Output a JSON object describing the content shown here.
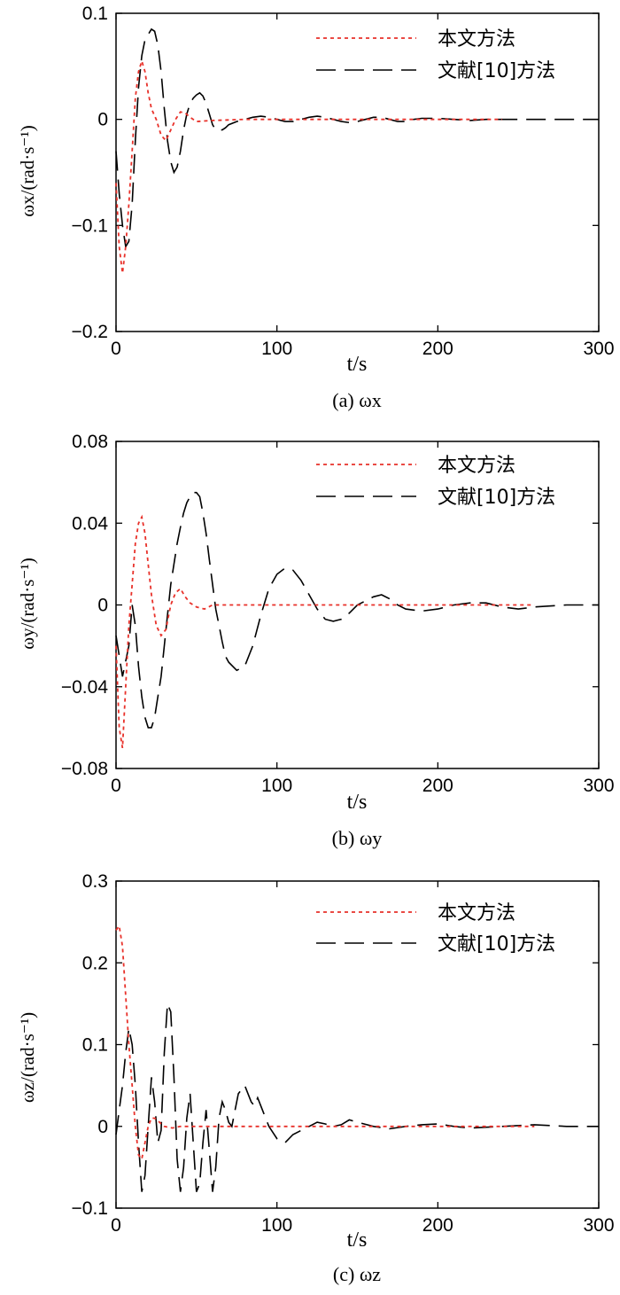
{
  "colors": {
    "proposed": "#e8312a",
    "reference": "#000000",
    "axis": "#000000"
  },
  "chart_data": [
    {
      "type": "line",
      "caption": "(a) ωx",
      "xlabel": "t/s",
      "ylabel": "ωx/(rad·s⁻¹)",
      "xlim": [
        0,
        300
      ],
      "ylim": [
        -0.2,
        0.1
      ],
      "xticks": [
        0,
        100,
        200,
        300
      ],
      "xtick_labels": [
        "0",
        "100",
        "200",
        "300"
      ],
      "yticks": [
        -0.2,
        -0.1,
        0,
        0.1
      ],
      "ytick_labels": [
        "−0.2",
        "−0.1",
        "0",
        "0.1"
      ],
      "legend_position": "top-right",
      "grid": false,
      "series": [
        {
          "name": "本文方法",
          "style": "dotted-red",
          "x": [
            0,
            2,
            4,
            6,
            8,
            10,
            12,
            14,
            16,
            18,
            20,
            22,
            25,
            28,
            31,
            34,
            37,
            40,
            43,
            46,
            50,
            60,
            80,
            100,
            120,
            150,
            200,
            240
          ],
          "y": [
            -0.06,
            -0.12,
            -0.145,
            -0.12,
            -0.08,
            -0.03,
            0.02,
            0.045,
            0.055,
            0.045,
            0.025,
            0.01,
            0.0,
            -0.015,
            -0.02,
            -0.01,
            0.0,
            0.007,
            0.006,
            0.002,
            -0.002,
            -0.001,
            0.0,
            0.0,
            0.0,
            0.0,
            0.0,
            0.0
          ]
        },
        {
          "name": "文献[10]方法",
          "style": "dashed-black",
          "x": [
            0,
            2,
            4,
            6,
            8,
            10,
            12,
            14,
            16,
            18,
            20,
            22,
            24,
            26,
            28,
            30,
            32,
            34,
            36,
            38,
            40,
            42,
            44,
            46,
            48,
            50,
            52,
            54,
            56,
            58,
            60,
            62,
            64,
            66,
            68,
            70,
            75,
            80,
            85,
            90,
            95,
            100,
            105,
            110,
            115,
            120,
            125,
            130,
            135,
            140,
            145,
            150,
            155,
            160,
            165,
            170,
            175,
            180,
            185,
            190,
            200,
            210,
            220,
            230,
            240,
            260,
            280,
            300
          ],
          "y": [
            -0.03,
            -0.07,
            -0.1,
            -0.12,
            -0.115,
            -0.08,
            -0.02,
            0.03,
            0.06,
            0.075,
            0.08,
            0.085,
            0.083,
            0.07,
            0.045,
            0.01,
            -0.02,
            -0.04,
            -0.05,
            -0.045,
            -0.03,
            -0.01,
            0.005,
            0.015,
            0.02,
            0.023,
            0.025,
            0.022,
            0.015,
            0.005,
            -0.005,
            -0.01,
            -0.01,
            -0.01,
            -0.008,
            -0.005,
            -0.002,
            0.0,
            0.002,
            0.003,
            0.002,
            0.0,
            -0.002,
            -0.002,
            0.0,
            0.002,
            0.003,
            0.002,
            0.0,
            -0.002,
            -0.003,
            -0.002,
            0.0,
            0.002,
            0.002,
            0.0,
            -0.002,
            -0.002,
            0.0,
            0.001,
            0.001,
            0.0,
            -0.001,
            0.0,
            0.0,
            0.0,
            0.0,
            0.0
          ]
        }
      ]
    },
    {
      "type": "line",
      "caption": "(b) ωy",
      "xlabel": "t/s",
      "ylabel": "ωy/(rad·s⁻¹)",
      "xlim": [
        0,
        300
      ],
      "ylim": [
        -0.08,
        0.08
      ],
      "xticks": [
        0,
        100,
        200,
        300
      ],
      "xtick_labels": [
        "0",
        "100",
        "200",
        "300"
      ],
      "yticks": [
        -0.08,
        -0.04,
        0,
        0.04,
        0.08
      ],
      "ytick_labels": [
        "−0.08",
        "−0.04",
        "0",
        "0.04",
        "0.08"
      ],
      "legend_position": "top-right",
      "grid": false,
      "series": [
        {
          "name": "本文方法",
          "style": "dotted-red",
          "x": [
            0,
            2,
            4,
            6,
            8,
            10,
            12,
            14,
            16,
            18,
            20,
            22,
            25,
            28,
            31,
            34,
            37,
            40,
            43,
            46,
            50,
            55,
            60,
            70,
            100,
            150,
            200,
            260
          ],
          "y": [
            -0.02,
            -0.06,
            -0.07,
            -0.04,
            -0.01,
            0.01,
            0.03,
            0.04,
            0.043,
            0.035,
            0.02,
            0.005,
            -0.01,
            -0.015,
            -0.012,
            0.0,
            0.006,
            0.008,
            0.004,
            0.001,
            -0.001,
            -0.002,
            0.0,
            0.0,
            0.0,
            0.0,
            0.0,
            0.0
          ]
        },
        {
          "name": "文献[10]方法",
          "style": "dashed-black",
          "x": [
            0,
            4,
            8,
            10,
            12,
            14,
            16,
            18,
            20,
            22,
            24,
            26,
            28,
            30,
            32,
            34,
            36,
            38,
            40,
            42,
            44,
            46,
            48,
            50,
            52,
            54,
            56,
            58,
            60,
            62,
            64,
            66,
            68,
            70,
            75,
            80,
            85,
            90,
            95,
            100,
            105,
            110,
            115,
            120,
            125,
            130,
            135,
            140,
            145,
            150,
            160,
            165,
            170,
            175,
            180,
            190,
            200,
            210,
            220,
            230,
            240,
            250,
            260,
            280,
            300
          ],
          "y": [
            -0.015,
            -0.035,
            -0.02,
            0.0,
            -0.01,
            -0.03,
            -0.045,
            -0.055,
            -0.06,
            -0.06,
            -0.055,
            -0.045,
            -0.035,
            -0.02,
            -0.005,
            0.01,
            0.02,
            0.03,
            0.038,
            0.045,
            0.05,
            0.053,
            0.055,
            0.055,
            0.053,
            0.045,
            0.035,
            0.022,
            0.01,
            -0.002,
            -0.01,
            -0.018,
            -0.025,
            -0.028,
            -0.032,
            -0.03,
            -0.02,
            -0.005,
            0.008,
            0.015,
            0.018,
            0.017,
            0.012,
            0.005,
            -0.002,
            -0.007,
            -0.008,
            -0.007,
            -0.004,
            0.0,
            0.004,
            0.005,
            0.003,
            0.0,
            -0.002,
            -0.003,
            -0.002,
            0.0,
            0.001,
            0.001,
            -0.001,
            -0.002,
            -0.001,
            0.0,
            0.0
          ]
        }
      ]
    },
    {
      "type": "line",
      "caption": "(c) ωz",
      "xlabel": "t/s",
      "ylabel": "ωz/(rad·s⁻¹)",
      "xlim": [
        0,
        300
      ],
      "ylim": [
        -0.1,
        0.3
      ],
      "xticks": [
        0,
        100,
        200,
        300
      ],
      "xtick_labels": [
        "0",
        "100",
        "200",
        "300"
      ],
      "yticks": [
        -0.1,
        0,
        0.1,
        0.2,
        0.3
      ],
      "ytick_labels": [
        "−0.1",
        "0",
        "0.1",
        "0.2",
        "0.3"
      ],
      "legend_position": "top-right",
      "grid": false,
      "series": [
        {
          "name": "本文方法",
          "style": "dotted-red",
          "x": [
            0,
            2,
            4,
            6,
            8,
            10,
            12,
            14,
            16,
            18,
            20,
            22,
            24,
            27,
            30,
            35,
            40,
            50,
            70,
            100,
            150,
            200,
            260
          ],
          "y": [
            0.24,
            0.245,
            0.22,
            0.16,
            0.1,
            0.05,
            0.0,
            -0.035,
            -0.04,
            -0.02,
            0.0,
            0.01,
            0.01,
            0.005,
            0.0,
            -0.002,
            0.0,
            0.0,
            0.0,
            0.0,
            0.0,
            0.0,
            0.0
          ]
        },
        {
          "name": "文献[10]方法",
          "style": "dashed-black",
          "x": [
            0,
            2,
            4,
            6,
            8,
            10,
            12,
            14,
            16,
            18,
            20,
            22,
            24,
            26,
            28,
            30,
            32,
            34,
            36,
            38,
            40,
            42,
            44,
            46,
            48,
            50,
            52,
            54,
            56,
            58,
            60,
            62,
            64,
            66,
            68,
            70,
            72,
            74,
            76,
            78,
            80,
            82,
            84,
            86,
            88,
            90,
            95,
            100,
            105,
            110,
            115,
            120,
            125,
            130,
            135,
            140,
            145,
            150,
            160,
            170,
            180,
            190,
            200,
            210,
            220,
            240,
            260,
            280,
            300
          ],
          "y": [
            -0.01,
            0.02,
            0.05,
            0.09,
            0.12,
            0.1,
            0.05,
            -0.02,
            -0.08,
            -0.06,
            0.0,
            0.06,
            0.03,
            -0.02,
            -0.005,
            0.09,
            0.15,
            0.14,
            0.06,
            -0.04,
            -0.08,
            -0.05,
            0.01,
            0.04,
            -0.02,
            -0.08,
            -0.07,
            -0.02,
            0.02,
            -0.03,
            -0.08,
            -0.05,
            0.01,
            0.03,
            0.02,
            0.005,
            0.0,
            0.02,
            0.04,
            0.045,
            0.05,
            0.04,
            0.03,
            0.025,
            0.035,
            0.025,
            0.0,
            -0.015,
            -0.02,
            -0.01,
            -0.005,
            0.0,
            0.005,
            0.003,
            0.0,
            0.002,
            0.008,
            0.005,
            0.0,
            -0.003,
            0.0,
            0.002,
            0.003,
            0.0,
            -0.002,
            0.0,
            0.002,
            0.0,
            0.0
          ]
        }
      ]
    }
  ]
}
